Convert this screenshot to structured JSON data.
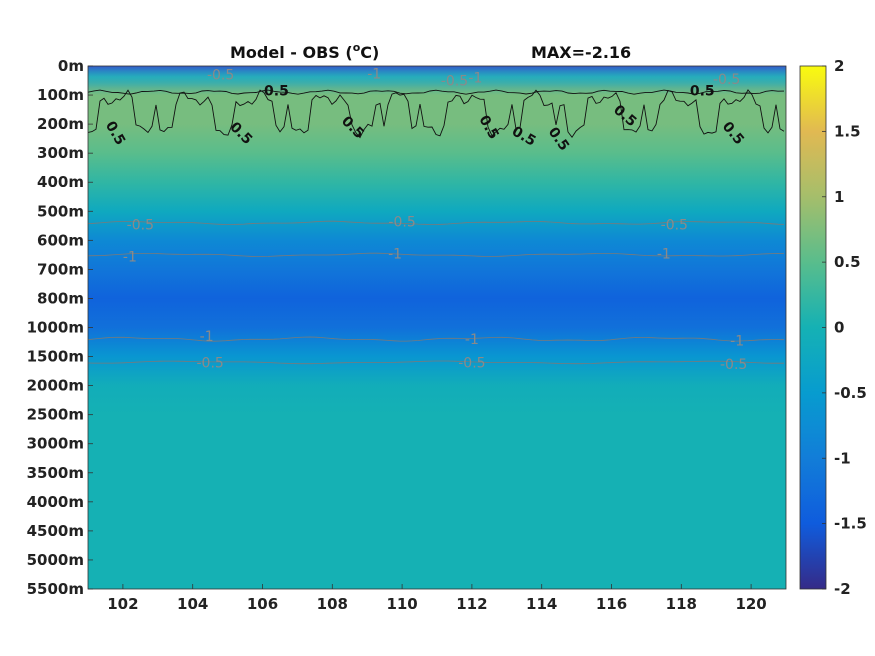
{
  "chart_data": {
    "type": "heatmap",
    "title": "Model - OBS (",
    "title_unit": "C)",
    "title_superscript": "o",
    "max_label": "MAX=-2.16",
    "x_ticks": [
      "102",
      "104",
      "106",
      "108",
      "110",
      "112",
      "114",
      "116",
      "118",
      "120"
    ],
    "x_values": [
      102,
      104,
      106,
      108,
      110,
      112,
      114,
      116,
      118,
      120
    ],
    "xlim": [
      101,
      121
    ],
    "y_ticks": [
      "0m",
      "100m",
      "200m",
      "300m",
      "400m",
      "500m",
      "600m",
      "700m",
      "800m",
      "1000m",
      "1500m",
      "2000m",
      "2500m",
      "3000m",
      "3500m",
      "4000m",
      "4500m",
      "5000m",
      "5500m"
    ],
    "colorbar": {
      "ticks": [
        "2",
        "1.5",
        "1",
        "0.5",
        "0",
        "-0.5",
        "-1",
        "-1.5",
        "-2"
      ],
      "values": [
        2,
        1.5,
        1,
        0.5,
        0,
        -0.5,
        -1,
        -1.5,
        -2
      ],
      "range": [
        -2,
        2
      ],
      "colormap": "parula"
    },
    "depth_profile": {
      "depth_levels": [
        "0m",
        "100m",
        "200m",
        "300m",
        "400m",
        "500m",
        "600m",
        "700m",
        "800m",
        "1000m",
        "1500m",
        "2000m",
        "2500m",
        "3000m",
        "3500m",
        "4000m",
        "4500m",
        "5000m",
        "5500m"
      ],
      "values": [
        -0.6,
        0.7,
        0.7,
        0.5,
        0.2,
        -0.2,
        -0.8,
        -1.1,
        -1.4,
        -1.2,
        -0.6,
        -0.1,
        0.0,
        0.0,
        0.0,
        0.0,
        0.0,
        0.0,
        0.0
      ]
    },
    "contour_labels": [
      {
        "text": "0.5",
        "x": 106.4,
        "depth_index": 0.85,
        "rotation": 0
      },
      {
        "text": "0.5",
        "x": 118.6,
        "depth_index": 0.85,
        "rotation": 0
      },
      {
        "text": "0.5",
        "x": 101.8,
        "depth_index": 2.3,
        "rotation": 60
      },
      {
        "text": "0.5",
        "x": 105.4,
        "depth_index": 2.3,
        "rotation": 45
      },
      {
        "text": "0.5",
        "x": 108.6,
        "depth_index": 2.1,
        "rotation": 45
      },
      {
        "text": "0.5",
        "x": 112.5,
        "depth_index": 2.1,
        "rotation": 60
      },
      {
        "text": "0.5",
        "x": 113.5,
        "depth_index": 2.4,
        "rotation": 30
      },
      {
        "text": "0.5",
        "x": 114.5,
        "depth_index": 2.5,
        "rotation": 55
      },
      {
        "text": "0.5",
        "x": 116.4,
        "depth_index": 1.7,
        "rotation": 40
      },
      {
        "text": "0.5",
        "x": 119.5,
        "depth_index": 2.3,
        "rotation": 50
      },
      {
        "text": "-0.5",
        "x": 104.8,
        "depth_index": 0.3,
        "rotation": 0
      },
      {
        "text": "-1",
        "x": 109.2,
        "depth_index": 0.25,
        "rotation": 0
      },
      {
        "text": "-0.5",
        "x": 111.5,
        "depth_index": 0.5,
        "rotation": 0
      },
      {
        "text": "-1",
        "x": 112.1,
        "depth_index": 0.4,
        "rotation": 0
      },
      {
        "text": "-0.5",
        "x": 119.3,
        "depth_index": 0.45,
        "rotation": 0
      },
      {
        "text": "-0.5",
        "x": 102.5,
        "depth_index": 5.45,
        "rotation": 0
      },
      {
        "text": "-0.5",
        "x": 110.0,
        "depth_index": 5.35,
        "rotation": 0
      },
      {
        "text": "-0.5",
        "x": 117.8,
        "depth_index": 5.45,
        "rotation": 0
      },
      {
        "text": "-1",
        "x": 102.2,
        "depth_index": 6.55,
        "rotation": 0
      },
      {
        "text": "-1",
        "x": 109.8,
        "depth_index": 6.45,
        "rotation": 0
      },
      {
        "text": "-1",
        "x": 117.5,
        "depth_index": 6.45,
        "rotation": 0
      },
      {
        "text": "-1",
        "x": 104.4,
        "depth_index": 9.3,
        "rotation": 0
      },
      {
        "text": "-1",
        "x": 112.0,
        "depth_index": 9.4,
        "rotation": 0
      },
      {
        "text": "-1",
        "x": 119.6,
        "depth_index": 9.45,
        "rotation": 0
      },
      {
        "text": "-0.5",
        "x": 104.5,
        "depth_index": 10.2,
        "rotation": 0
      },
      {
        "text": "-0.5",
        "x": 112.0,
        "depth_index": 10.2,
        "rotation": 0
      },
      {
        "text": "-0.5",
        "x": 119.5,
        "depth_index": 10.25,
        "rotation": 0
      }
    ]
  }
}
